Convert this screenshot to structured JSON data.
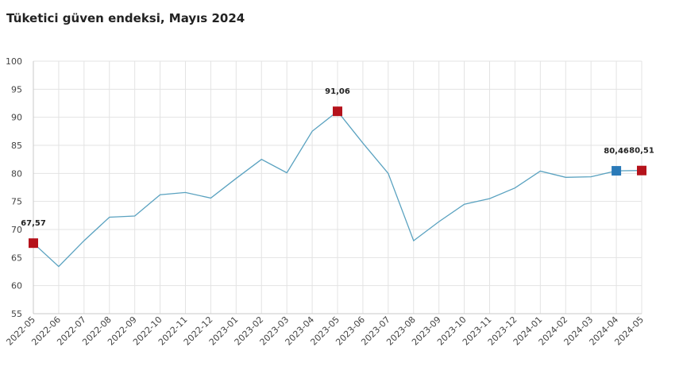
{
  "title": "Tüketici güven endeksi, Mayıs 2024",
  "colors": {
    "line": "#5aa2c0",
    "highlight": "#b5121b",
    "current": "#2a7ab8",
    "grid": "#e3e3e3",
    "axis": "#c9c9c9"
  },
  "chart_data": {
    "type": "line",
    "title": "Tüketici güven endeksi, Mayıs 2024",
    "xlabel": "",
    "ylabel": "",
    "ylim": [
      55,
      100
    ],
    "yticks": [
      55,
      60,
      65,
      70,
      75,
      80,
      85,
      90,
      95,
      100
    ],
    "grid": true,
    "categories": [
      "2022-05",
      "2022-06",
      "2022-07",
      "2022-08",
      "2022-09",
      "2022-10",
      "2022-11",
      "2022-12",
      "2023-01",
      "2023-02",
      "2023-03",
      "2023-04",
      "2023-05",
      "2023-06",
      "2023-07",
      "2023-08",
      "2023-09",
      "2023-10",
      "2023-11",
      "2023-12",
      "2024-01",
      "2024-02",
      "2024-03",
      "2024-04",
      "2024-05"
    ],
    "series": [
      {
        "values": [
          67.57,
          63.4,
          68.0,
          72.2,
          72.4,
          76.2,
          76.6,
          75.6,
          79.1,
          82.5,
          80.1,
          87.5,
          91.06,
          85.4,
          80.0,
          68.0,
          71.4,
          74.5,
          75.5,
          77.4,
          80.4,
          79.3,
          79.4,
          80.46,
          80.51
        ]
      }
    ],
    "markers": [
      {
        "category": "2022-05",
        "value": 67.57,
        "label": "67,57",
        "style": "highlight"
      },
      {
        "category": "2023-05",
        "value": 91.06,
        "label": "91,06",
        "style": "highlight"
      },
      {
        "category": "2024-04",
        "value": 80.46,
        "label": "80,46",
        "style": "current"
      },
      {
        "category": "2024-05",
        "value": 80.51,
        "label": "80,51",
        "style": "highlight"
      }
    ]
  }
}
